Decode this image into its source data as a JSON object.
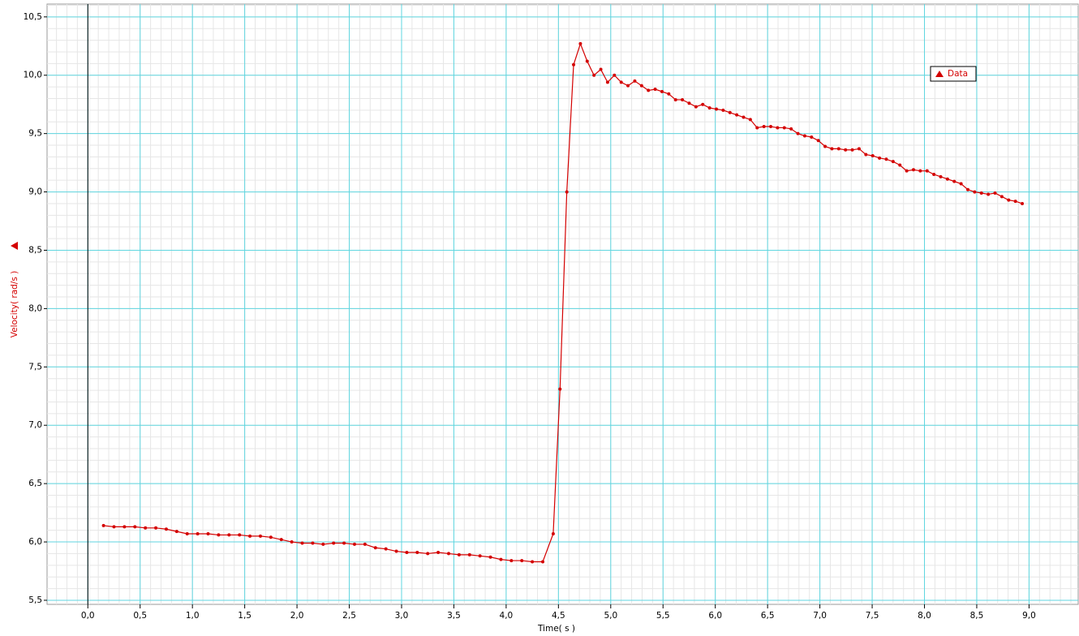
{
  "chart_data": {
    "type": "line",
    "x_label": "Time( s )",
    "y_label": "Velocity( rad/s )",
    "series": [
      {
        "name": "Data",
        "color": "#d40000",
        "x": [
          0.15,
          0.25,
          0.35,
          0.45,
          0.55,
          0.65,
          0.75,
          0.85,
          0.95,
          1.05,
          1.15,
          1.25,
          1.35,
          1.45,
          1.55,
          1.65,
          1.75,
          1.85,
          1.95,
          2.05,
          2.15,
          2.25,
          2.35,
          2.45,
          2.55,
          2.65,
          2.75,
          2.85,
          2.95,
          3.05,
          3.15,
          3.25,
          3.35,
          3.45,
          3.55,
          3.65,
          3.75,
          3.85,
          3.95,
          4.05,
          4.15,
          4.25,
          4.35,
          4.45,
          4.515,
          4.58,
          4.645,
          4.71,
          4.775,
          4.84,
          4.905,
          4.97,
          5.035,
          5.1,
          5.165,
          5.23,
          5.295,
          5.36,
          5.425,
          5.49,
          5.555,
          5.62,
          5.685,
          5.75,
          5.815,
          5.88,
          5.945,
          6.01,
          6.075,
          6.14,
          6.205,
          6.27,
          6.335,
          6.4,
          6.465,
          6.53,
          6.595,
          6.66,
          6.725,
          6.79,
          6.855,
          6.92,
          6.985,
          7.05,
          7.115,
          7.18,
          7.245,
          7.31,
          7.375,
          7.44,
          7.505,
          7.57,
          7.635,
          7.7,
          7.765,
          7.83,
          7.895,
          7.96,
          8.025,
          8.09,
          8.155,
          8.22,
          8.285,
          8.35,
          8.415,
          8.48,
          8.545,
          8.61,
          8.675,
          8.74,
          8.805,
          8.87,
          8.935
        ],
        "values": [
          6.14,
          6.13,
          6.13,
          6.13,
          6.12,
          6.12,
          6.11,
          6.09,
          6.07,
          6.07,
          6.07,
          6.06,
          6.06,
          6.06,
          6.05,
          6.05,
          6.04,
          6.02,
          6.0,
          5.99,
          5.99,
          5.98,
          5.99,
          5.99,
          5.98,
          5.98,
          5.95,
          5.94,
          5.92,
          5.91,
          5.91,
          5.9,
          5.91,
          5.9,
          5.89,
          5.89,
          5.88,
          5.87,
          5.85,
          5.84,
          5.84,
          5.83,
          5.83,
          6.07,
          7.31,
          9.0,
          10.09,
          10.27,
          10.12,
          10.0,
          10.05,
          9.94,
          10.0,
          9.94,
          9.91,
          9.95,
          9.91,
          9.87,
          9.88,
          9.86,
          9.84,
          9.79,
          9.79,
          9.76,
          9.73,
          9.75,
          9.72,
          9.71,
          9.7,
          9.68,
          9.66,
          9.64,
          9.62,
          9.55,
          9.56,
          9.56,
          9.55,
          9.55,
          9.54,
          9.5,
          9.48,
          9.47,
          9.44,
          9.39,
          9.37,
          9.37,
          9.36,
          9.36,
          9.37,
          9.32,
          9.31,
          9.29,
          9.28,
          9.26,
          9.23,
          9.18,
          9.19,
          9.18,
          9.18,
          9.15,
          9.13,
          9.11,
          9.09,
          9.07,
          9.02,
          9.0,
          8.99,
          8.98,
          8.99,
          8.96,
          8.93,
          8.92,
          8.9
        ]
      }
    ],
    "xlim": [
      -0.39,
      9.47
    ],
    "ylim": [
      5.465,
      10.61
    ],
    "xticks": [
      {
        "value": 0,
        "label": "0,0"
      },
      {
        "value": 0.5,
        "label": "0,5"
      },
      {
        "value": 1,
        "label": "1,0"
      },
      {
        "value": 1.5,
        "label": "1,5"
      },
      {
        "value": 2,
        "label": "2,0"
      },
      {
        "value": 2.5,
        "label": "2,5"
      },
      {
        "value": 3,
        "label": "3,0"
      },
      {
        "value": 3.5,
        "label": "3,5"
      },
      {
        "value": 4,
        "label": "4,0"
      },
      {
        "value": 4.5,
        "label": "4,5"
      },
      {
        "value": 5,
        "label": "5,0"
      },
      {
        "value": 5.5,
        "label": "5,5"
      },
      {
        "value": 6,
        "label": "6,0"
      },
      {
        "value": 6.5,
        "label": "6,5"
      },
      {
        "value": 7,
        "label": "7,0"
      },
      {
        "value": 7.5,
        "label": "7,5"
      },
      {
        "value": 8,
        "label": "8,0"
      },
      {
        "value": 8.5,
        "label": "8,5"
      },
      {
        "value": 9,
        "label": "9,0"
      }
    ],
    "yticks": [
      {
        "value": 5.5,
        "label": "5,5"
      },
      {
        "value": 6,
        "label": "6,0"
      },
      {
        "value": 6.5,
        "label": "6,5"
      },
      {
        "value": 7,
        "label": "7,0"
      },
      {
        "value": 7.5,
        "label": "7,5"
      },
      {
        "value": 8,
        "label": "8,0"
      },
      {
        "value": 8.5,
        "label": "8,5"
      },
      {
        "value": 9,
        "label": "9,0"
      },
      {
        "value": 9.5,
        "label": "9,5"
      },
      {
        "value": 10,
        "label": "10,0"
      },
      {
        "value": 10.5,
        "label": "10,5"
      }
    ],
    "grid": true,
    "minor_grid": true,
    "grid_color": "#5fd6e0",
    "legend": "upper right"
  }
}
